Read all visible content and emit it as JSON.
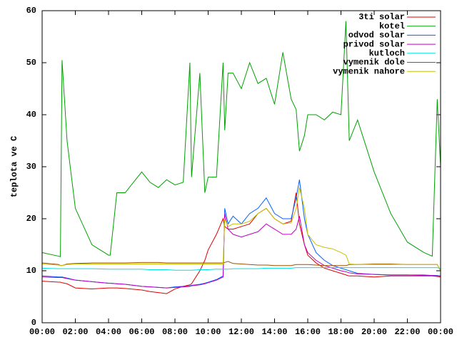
{
  "chart_data": {
    "type": "line",
    "ylabel": "teplota ve C",
    "x": [
      0,
      1,
      1.1,
      1.2,
      1.5,
      2,
      3,
      4,
      4.1,
      4.5,
      5,
      6,
      6.5,
      7,
      7.5,
      8,
      8.5,
      8.9,
      9,
      9.5,
      9.8,
      10,
      10.5,
      10.9,
      11,
      11.2,
      11.5,
      12,
      12.5,
      13,
      13.5,
      14,
      14.5,
      15,
      15.3,
      15.5,
      15.8,
      16,
      16.5,
      17,
      17.5,
      18,
      18.3,
      18.5,
      19,
      20,
      21,
      22,
      23,
      23.5,
      23.8,
      24
    ],
    "xlim": [
      0,
      24
    ],
    "xticks": [
      {
        "value": 0,
        "label": "00:00"
      },
      {
        "value": 2,
        "label": "02:00"
      },
      {
        "value": 4,
        "label": "04:00"
      },
      {
        "value": 6,
        "label": "06:00"
      },
      {
        "value": 8,
        "label": "08:00"
      },
      {
        "value": 10,
        "label": "10:00"
      },
      {
        "value": 12,
        "label": "12:00"
      },
      {
        "value": 14,
        "label": "14:00"
      },
      {
        "value": 16,
        "label": "16:00"
      },
      {
        "value": 18,
        "label": "18:00"
      },
      {
        "value": 20,
        "label": "20:00"
      },
      {
        "value": 22,
        "label": "22:00"
      },
      {
        "value": 24,
        "label": "00:00"
      }
    ],
    "ylim": [
      0,
      60
    ],
    "yticks": [
      0,
      10,
      20,
      30,
      40,
      50,
      60
    ],
    "legend": "top-right",
    "series": [
      {
        "name": "3ti solar",
        "color": "#e00000",
        "values": [
          8,
          7.8,
          7.8,
          7.7,
          7.5,
          6.7,
          6.5,
          6.7,
          6.7,
          6.7,
          6.6,
          6.3,
          6,
          5.8,
          5.6,
          6.5,
          7,
          7.3,
          7.5,
          10,
          12,
          14,
          17,
          20,
          18.5,
          18,
          18,
          18.5,
          19,
          21,
          22,
          20,
          19,
          19.5,
          25,
          19,
          15,
          13,
          11.5,
          10.5,
          10,
          9.5,
          9.2,
          9,
          9,
          8.8,
          9,
          9,
          9,
          9,
          8.9,
          8.8
        ]
      },
      {
        "name": "kotel",
        "color": "#00a000",
        "values": [
          13.5,
          12.8,
          12.7,
          50.5,
          35,
          22,
          15,
          13,
          13,
          25,
          25,
          29,
          27,
          26,
          27.5,
          26.5,
          27,
          50,
          28,
          48,
          25,
          28,
          28,
          50,
          37,
          48,
          48,
          45,
          50,
          46,
          47,
          42,
          52,
          43,
          41,
          33,
          36,
          40,
          40,
          39,
          40.5,
          40,
          58,
          35,
          39,
          29,
          21,
          15.5,
          13.5,
          12.8,
          43,
          30
        ]
      },
      {
        "name": "odvod solar",
        "color": "#0060ff",
        "values": [
          9,
          8.8,
          8.8,
          8.8,
          8.6,
          8.2,
          7.9,
          7.6,
          7.6,
          7.5,
          7.4,
          7,
          6.9,
          6.8,
          6.7,
          6.9,
          7,
          7.1,
          7.2,
          7.4,
          7.6,
          7.8,
          8.3,
          9,
          22,
          19,
          20.5,
          19,
          21,
          22,
          24,
          21,
          20,
          20,
          24,
          27.5,
          20,
          17,
          13.5,
          12,
          11,
          10.5,
          10.2,
          10,
          9.5,
          9.3,
          9.2,
          9.2,
          9.2,
          9.1,
          9.1,
          9
        ]
      },
      {
        "name": "privod solar",
        "color": "#c000c0",
        "values": [
          8.8,
          8.7,
          8.7,
          8.7,
          8.5,
          8.2,
          7.9,
          7.6,
          7.6,
          7.5,
          7.4,
          7,
          6.9,
          6.8,
          6.7,
          6.8,
          6.9,
          7,
          7.1,
          7.3,
          7.5,
          7.7,
          8.2,
          8.8,
          21,
          18,
          17,
          16.5,
          17,
          17.5,
          19,
          18,
          17,
          17,
          18,
          20.5,
          15,
          13.5,
          12,
          11,
          10.5,
          10,
          9.8,
          9.6,
          9.4,
          9.3,
          9.2,
          9.2,
          9.1,
          9.1,
          9,
          9
        ]
      },
      {
        "name": "kutloch",
        "color": "#00e0e0",
        "values": [
          10.5,
          10.4,
          10.4,
          10.4,
          10.4,
          10.4,
          10.4,
          10.3,
          10.3,
          10.3,
          10.3,
          10.3,
          10.2,
          10.2,
          10.2,
          10.1,
          10.1,
          10.1,
          10.1,
          10.2,
          10.2,
          10.2,
          10.3,
          10.3,
          10.3,
          10.3,
          10.4,
          10.4,
          10.4,
          10.4,
          10.5,
          10.5,
          10.5,
          10.5,
          10.6,
          10.6,
          10.6,
          10.6,
          10.6,
          10.6,
          10.6,
          10.6,
          10.6,
          10.6,
          10.6,
          10.6,
          10.6,
          10.6,
          10.6,
          10.6,
          10.6,
          10.4
        ]
      },
      {
        "name": "vymenik dole",
        "color": "#a05000",
        "values": [
          11.5,
          11.2,
          11,
          11,
          11.3,
          11.4,
          11.5,
          11.5,
          11.5,
          11.5,
          11.5,
          11.6,
          11.6,
          11.6,
          11.5,
          11.5,
          11.5,
          11.5,
          11.5,
          11.5,
          11.5,
          11.5,
          11.5,
          11.5,
          11.6,
          11.8,
          11.4,
          11.3,
          11.2,
          11.1,
          11.1,
          11,
          11,
          11,
          11.2,
          11.2,
          11.2,
          11.2,
          11.1,
          11,
          11,
          11,
          11,
          11.2,
          11.2,
          11.3,
          11.3,
          11.2,
          11.2,
          11.2,
          11.2,
          10
        ]
      },
      {
        "name": "vymenik nahore",
        "color": "#c8c000",
        "values": [
          11.3,
          11.1,
          11,
          11,
          11.2,
          11.3,
          11.3,
          11.3,
          11.3,
          11.3,
          11.3,
          11.3,
          11.3,
          11.3,
          11.3,
          11.3,
          11.3,
          11.3,
          11.3,
          11.3,
          11.3,
          11.3,
          11.3,
          11.3,
          20,
          18.5,
          19,
          19,
          19.5,
          21,
          22,
          20,
          19,
          19.2,
          22,
          26,
          22,
          17,
          15,
          14.5,
          14.2,
          13.5,
          13,
          11.3,
          11.2,
          11.2,
          11.2,
          11.2,
          11.2,
          11.2,
          11.2,
          10
        ]
      }
    ]
  }
}
